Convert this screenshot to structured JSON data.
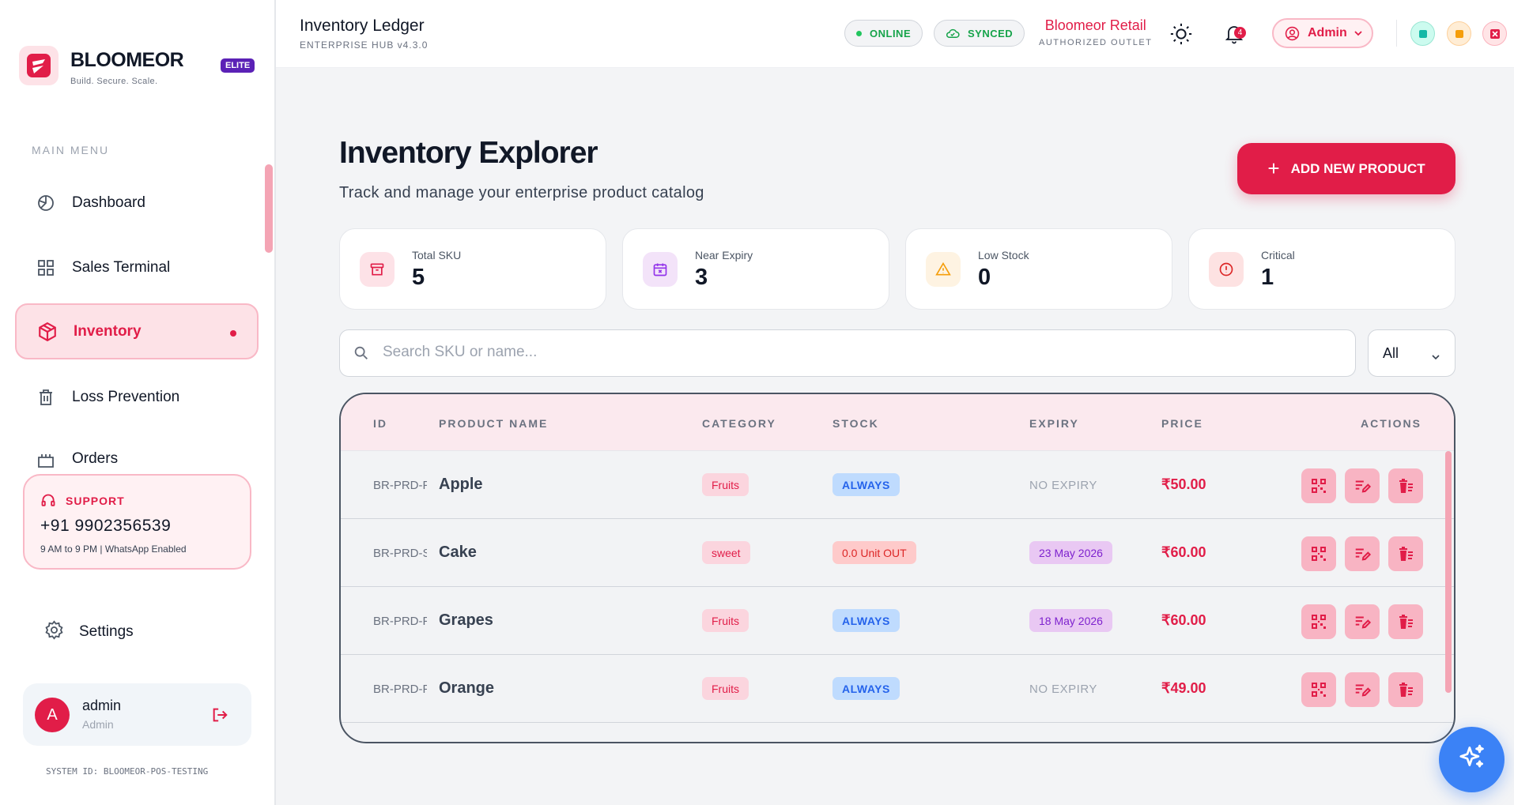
{
  "sidebar": {
    "brand": "BLOOMEOR",
    "tagline": "Build. Secure. Scale.",
    "badge": "ELITE",
    "menu_title": "MAIN MENU",
    "items": [
      {
        "label": "Dashboard",
        "icon": "dashboard-icon"
      },
      {
        "label": "Sales Terminal",
        "icon": "grid-icon"
      },
      {
        "label": "Inventory",
        "icon": "box-icon",
        "active": true
      },
      {
        "label": "Loss Prevention",
        "icon": "trash-icon"
      },
      {
        "label": "Orders",
        "icon": "orders-icon"
      }
    ],
    "support": {
      "title": "SUPPORT",
      "phone": "+91 9902356539",
      "hours": "9 AM to 9 PM | WhatsApp Enabled"
    },
    "settings_label": "Settings",
    "user": {
      "initial": "A",
      "name": "admin",
      "role": "Admin"
    },
    "system_id": "SYSTEM ID: BLOOMEOR-POS-TESTING"
  },
  "header": {
    "title": "Inventory Ledger",
    "subtitle": "ENTERPRISE HUB v4.3.0",
    "status_online": "ONLINE",
    "status_synced": "SYNCED",
    "store_name": "Bloomeor Retail",
    "store_sub": "AUTHORIZED OUTLET",
    "notification_count": "4",
    "admin_label": "Admin"
  },
  "main": {
    "title": "Inventory Explorer",
    "subtitle": "Track and manage your enterprise product catalog",
    "add_button": "ADD NEW PRODUCT",
    "stats": [
      {
        "label": "Total SKU",
        "value": "5"
      },
      {
        "label": "Near Expiry",
        "value": "3"
      },
      {
        "label": "Low Stock",
        "value": "0"
      },
      {
        "label": "Critical",
        "value": "1"
      }
    ],
    "search_placeholder": "Search SKU or name...",
    "filter_value": "All",
    "table": {
      "headers": [
        "ID",
        "PRODUCT NAME",
        "CATEGORY",
        "STOCK",
        "EXPIRY",
        "PRICE",
        "ACTIONS"
      ],
      "rows": [
        {
          "id": "BR-PRD-F",
          "name": "Apple",
          "category": "Fruits",
          "stock": "ALWAYS",
          "expiry": "NO EXPIRY",
          "price": "₹50.00"
        },
        {
          "id": "BR-PRD-S",
          "name": "Cake",
          "category": "sweet",
          "stock": "0.0 Unit OUT",
          "expiry": "23 May 2026",
          "price": "₹60.00"
        },
        {
          "id": "BR-PRD-F",
          "name": "Grapes",
          "category": "Fruits",
          "stock": "ALWAYS",
          "expiry": "18 May 2026",
          "price": "₹60.00"
        },
        {
          "id": "BR-PRD-F",
          "name": "Orange",
          "category": "Fruits",
          "stock": "ALWAYS",
          "expiry": "NO EXPIRY",
          "price": "₹49.00"
        }
      ]
    }
  },
  "colors": {
    "accent": "#e11d48",
    "info": "#2563eb",
    "fab": "#3b82f6"
  }
}
